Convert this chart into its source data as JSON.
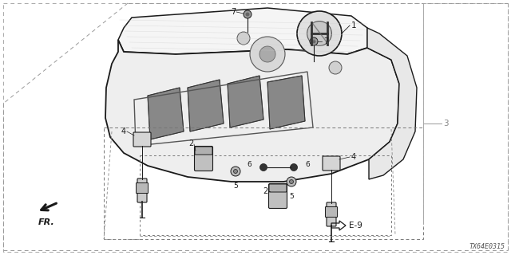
{
  "bg_color": "#ffffff",
  "line_color": "#1a1a1a",
  "gray_color": "#888888",
  "part_number_label": "TX64E0315",
  "fig_width": 6.4,
  "fig_height": 3.2,
  "dpi": 100
}
